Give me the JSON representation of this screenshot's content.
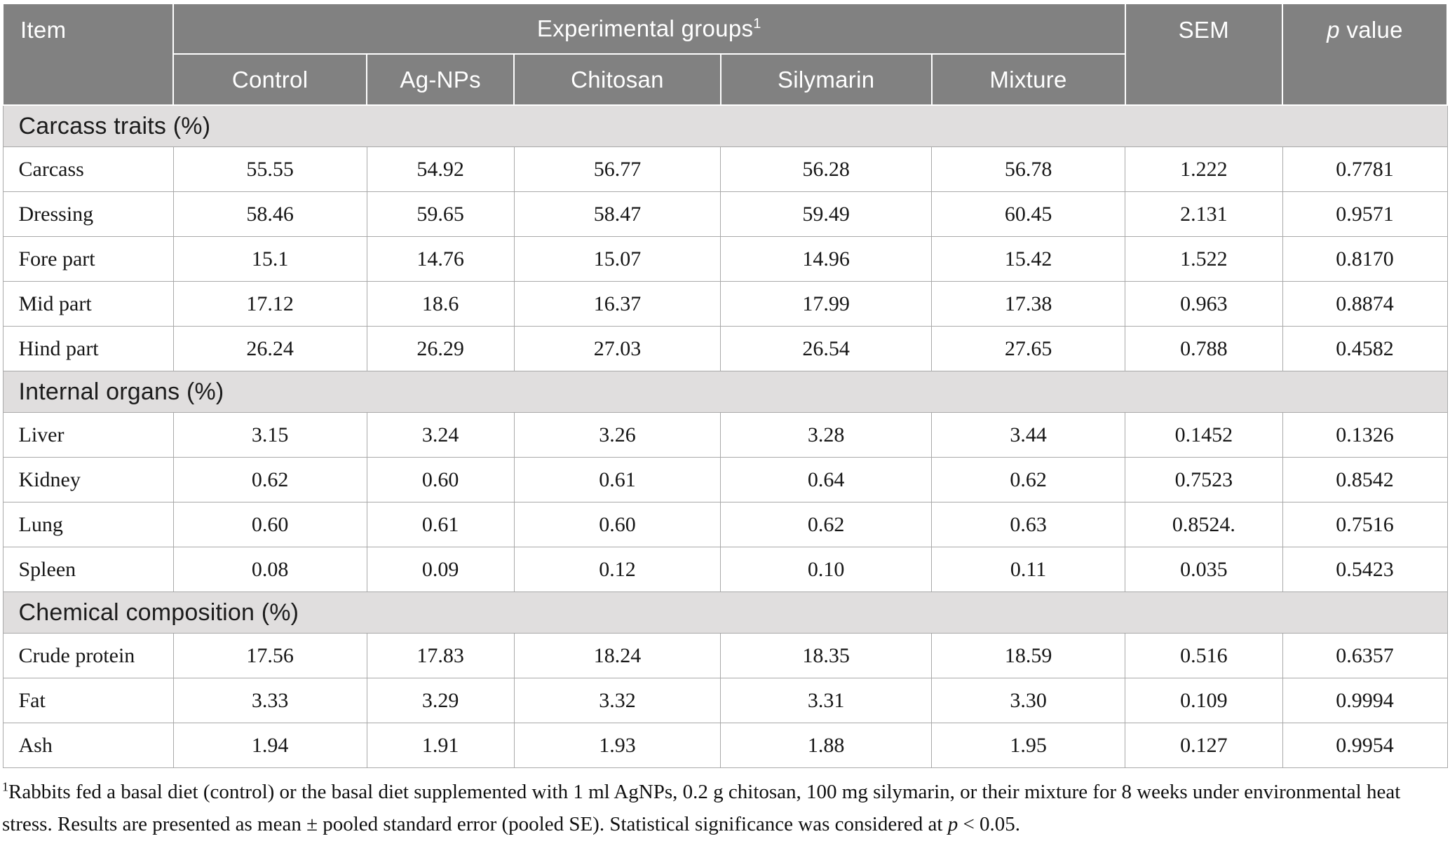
{
  "header": {
    "item": "Item",
    "groups_title": "Experimental groups",
    "groups_sup": "1",
    "group_columns": [
      "Control",
      "Ag-NPs",
      "Chitosan",
      "Silymarin",
      "Mixture"
    ],
    "sem": "SEM",
    "p_italic": "p",
    "p_rest": " value"
  },
  "sections": [
    {
      "title": "Carcass traits (%)",
      "rows": [
        {
          "label": "Carcass",
          "values": [
            "55.55",
            "54.92",
            "56.77",
            "56.28",
            "56.78",
            "1.222",
            "0.7781"
          ]
        },
        {
          "label": "Dressing",
          "values": [
            "58.46",
            "59.65",
            "58.47",
            "59.49",
            "60.45",
            "2.131",
            "0.9571"
          ]
        },
        {
          "label": "Fore part",
          "values": [
            "15.1",
            "14.76",
            "15.07",
            "14.96",
            "15.42",
            "1.522",
            "0.8170"
          ]
        },
        {
          "label": "Mid part",
          "values": [
            "17.12",
            "18.6",
            "16.37",
            "17.99",
            "17.38",
            "0.963",
            "0.8874"
          ]
        },
        {
          "label": "Hind part",
          "values": [
            "26.24",
            "26.29",
            "27.03",
            "26.54",
            "27.65",
            "0.788",
            "0.4582"
          ]
        }
      ]
    },
    {
      "title": "Internal organs (%)",
      "rows": [
        {
          "label": "Liver",
          "values": [
            "3.15",
            "3.24",
            "3.26",
            "3.28",
            "3.44",
            "0.1452",
            "0.1326"
          ]
        },
        {
          "label": "Kidney",
          "values": [
            "0.62",
            "0.60",
            "0.61",
            "0.64",
            "0.62",
            "0.7523",
            "0.8542"
          ]
        },
        {
          "label": "Lung",
          "values": [
            "0.60",
            "0.61",
            "0.60",
            "0.62",
            "0.63",
            "0.8524.",
            "0.7516"
          ]
        },
        {
          "label": "Spleen",
          "values": [
            "0.08",
            "0.09",
            "0.12",
            "0.10",
            "0.11",
            "0.035",
            "0.5423"
          ]
        }
      ]
    },
    {
      "title": "Chemical composition (%)",
      "rows": [
        {
          "label": "Crude protein",
          "values": [
            "17.56",
            "17.83",
            "18.24",
            "18.35",
            "18.59",
            "0.516",
            "0.6357"
          ]
        },
        {
          "label": "Fat",
          "values": [
            "3.33",
            "3.29",
            "3.32",
            "3.31",
            "3.30",
            "0.109",
            "0.9994"
          ]
        },
        {
          "label": "Ash",
          "values": [
            "1.94",
            "1.91",
            "1.93",
            "1.88",
            "1.95",
            "0.127",
            "0.9954"
          ]
        }
      ]
    }
  ],
  "footnote": {
    "sup": "1",
    "text_before_p": "Rabbits fed a basal diet (control) or the basal diet supplemented with 1 ml AgNPs, 0.2 g chitosan, 100 mg silymarin, or their mixture for 8 weeks under environmental heat stress. Results are presented as mean ± pooled standard error (pooled SE). Statistical significance was considered at ",
    "p_italic": "p",
    "text_after_p": " < 0.05."
  },
  "colors": {
    "header_bg": "#818181",
    "header_text": "#ffffff",
    "section_bg": "#e0dede",
    "border": "#a9a9a9",
    "body_text": "#161616"
  }
}
